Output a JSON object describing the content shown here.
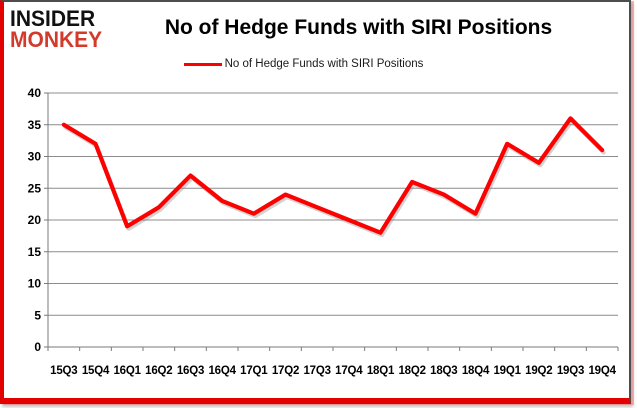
{
  "branding": {
    "logo_line1": "INSIDER",
    "logo_line2": "MONKEY"
  },
  "header": {
    "title": "No of Hedge Funds with SIRI Positions"
  },
  "legend": {
    "label": "No of Hedge Funds with SIRI Positions"
  },
  "colors": {
    "line": "#ff0000",
    "line_shadow": "rgba(130,130,130,0.35)",
    "frame_accent": "#e30000",
    "frame_dark": "#4d4d4d",
    "logo_black": "#111111",
    "logo_red": "#d23b2b",
    "gridline": "#8c8c8c",
    "axis": "#7a7a7a",
    "label_text": "#000000"
  },
  "chart_data": {
    "type": "line",
    "title": "No of Hedge Funds with SIRI Positions",
    "categories": [
      "15Q3",
      "15Q4",
      "16Q1",
      "16Q2",
      "16Q3",
      "16Q4",
      "17Q1",
      "17Q2",
      "17Q3",
      "17Q4",
      "18Q1",
      "18Q2",
      "18Q3",
      "18Q4",
      "19Q1",
      "19Q2",
      "19Q3",
      "19Q4"
    ],
    "series": [
      {
        "name": "No of Hedge Funds with SIRI Positions",
        "values": [
          35,
          32,
          19,
          22,
          27,
          23,
          21,
          24,
          22,
          20,
          18,
          26,
          24,
          21,
          32,
          29,
          36,
          31
        ]
      }
    ],
    "xlabel": "",
    "ylabel": "",
    "ylim": [
      0,
      40
    ],
    "ytick_step": 5,
    "grid": true,
    "legend_position": "top-center"
  }
}
